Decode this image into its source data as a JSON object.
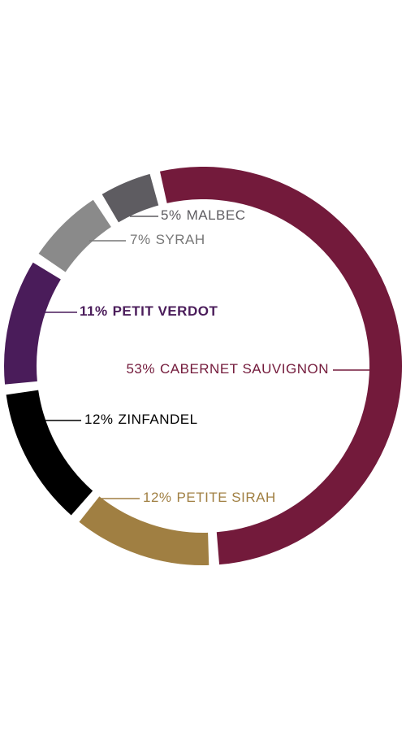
{
  "chart_data": {
    "type": "pie",
    "categories": [
      "CABERNET SAUVIGNON",
      "PETITE SIRAH",
      "ZINFANDEL",
      "PETIT VERDOT",
      "SYRAH",
      "MALBEC"
    ],
    "values": [
      53,
      12,
      12,
      11,
      7,
      5
    ],
    "value_labels": [
      "53%",
      "12%",
      "12%",
      "11%",
      "7%",
      "5%"
    ],
    "colors": [
      "#731a3b",
      "#a07f42",
      "#000000",
      "#4a1c5a",
      "#8a8a8a",
      "#5e5c61"
    ]
  }
}
